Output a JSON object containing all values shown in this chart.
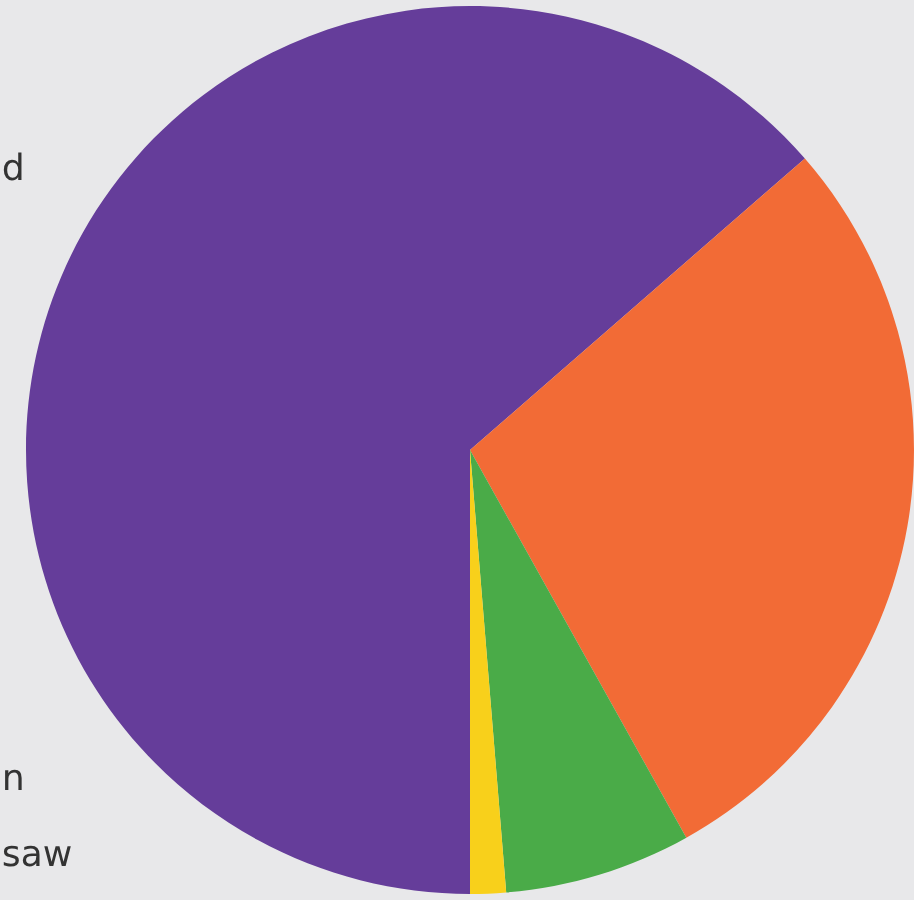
{
  "chart_data": {
    "type": "pie",
    "categories": [
      null,
      null,
      null,
      null
    ],
    "values": [
      63.6,
      28.3,
      6.8,
      1.3
    ],
    "colors": [
      "#653d9a",
      "#f26b36",
      "#4aab48",
      "#f8d01b"
    ],
    "annotations": [
      "d",
      "n",
      "saw"
    ]
  }
}
